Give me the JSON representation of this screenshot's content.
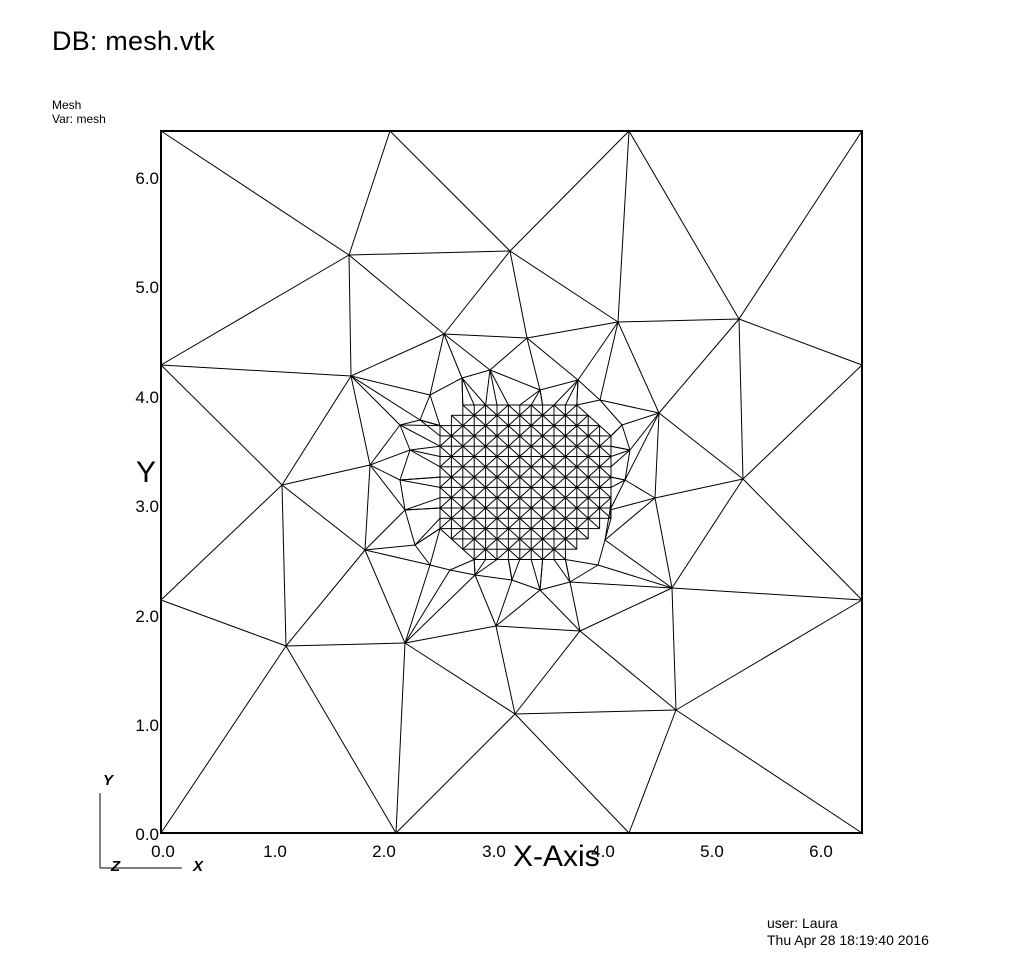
{
  "header": {
    "db_title": "DB: mesh.vtk"
  },
  "legend": {
    "plot_type": "Mesh",
    "var_label": "Var: mesh"
  },
  "axes": {
    "x_title": "X-Axis",
    "y_title": "Y",
    "x_range": [
      0.0,
      6.4
    ],
    "y_range": [
      0.0,
      6.4
    ],
    "x_ticks": [
      "0.0",
      "1.0",
      "2.0",
      "3.0",
      "4.0",
      "5.0",
      "6.0"
    ],
    "y_ticks": [
      "0.0",
      "1.0",
      "2.0",
      "3.0",
      "4.0",
      "5.0",
      "6.0"
    ]
  },
  "triad": {
    "x": "X",
    "y": "Y",
    "z": "Z"
  },
  "footer": {
    "user": "user: Laura",
    "timestamp": "Thu Apr 28 18:19:40 2016"
  },
  "colors": {
    "line": "#000000",
    "background": "#ffffff"
  }
}
